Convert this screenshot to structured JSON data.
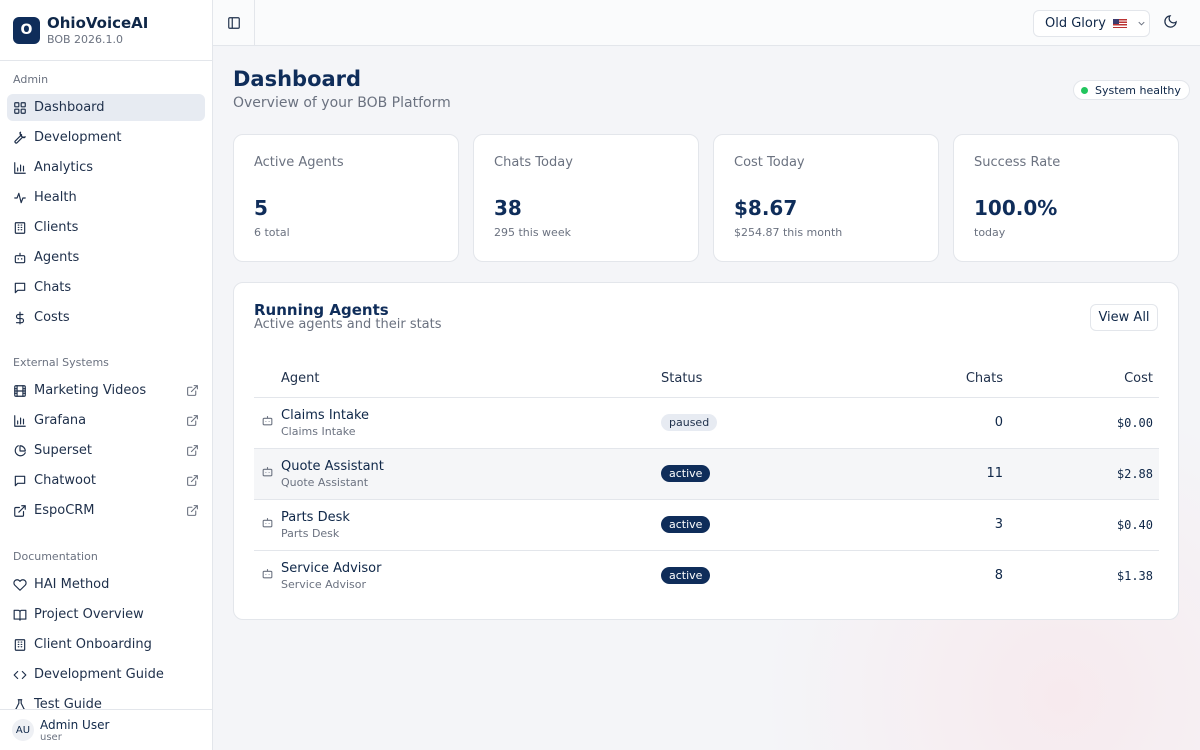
{
  "brand": {
    "logo": "O",
    "name": "OhioVoiceAI",
    "version": "BOB 2026.1.0"
  },
  "sidebar": {
    "sections": [
      {
        "label": "Admin",
        "items": [
          {
            "label": "Dashboard",
            "icon": "grid",
            "active": true
          },
          {
            "label": "Development",
            "icon": "wrench"
          },
          {
            "label": "Analytics",
            "icon": "bars"
          },
          {
            "label": "Health",
            "icon": "pulse"
          },
          {
            "label": "Clients",
            "icon": "building"
          },
          {
            "label": "Agents",
            "icon": "bot"
          },
          {
            "label": "Chats",
            "icon": "chat"
          },
          {
            "label": "Costs",
            "icon": "dollar"
          }
        ]
      },
      {
        "label": "External Systems",
        "items": [
          {
            "label": "Marketing Videos",
            "icon": "film",
            "external": true
          },
          {
            "label": "Grafana",
            "icon": "bars",
            "external": true
          },
          {
            "label": "Superset",
            "icon": "pie",
            "external": true
          },
          {
            "label": "Chatwoot",
            "icon": "chat",
            "external": true
          },
          {
            "label": "EspoCRM",
            "icon": "ext",
            "external": true
          }
        ]
      },
      {
        "label": "Documentation",
        "items": [
          {
            "label": "HAI Method",
            "icon": "heart"
          },
          {
            "label": "Project Overview",
            "icon": "book"
          },
          {
            "label": "Client Onboarding",
            "icon": "building"
          },
          {
            "label": "Development Guide",
            "icon": "code"
          },
          {
            "label": "Test Guide",
            "icon": "flask"
          }
        ]
      }
    ]
  },
  "user": {
    "initials": "AU",
    "name": "Admin User",
    "role": "user"
  },
  "topbar": {
    "theme": "Old Glory"
  },
  "page": {
    "title": "Dashboard",
    "subtitle": "Overview of your BOB Platform",
    "health": "System healthy"
  },
  "stats": [
    {
      "label": "Active Agents",
      "value": "5",
      "note": "6 total"
    },
    {
      "label": "Chats Today",
      "value": "38",
      "note": "295 this week"
    },
    {
      "label": "Cost Today",
      "value": "$8.67",
      "note": "$254.87 this month"
    },
    {
      "label": "Success Rate",
      "value": "100.0%",
      "note": "today"
    }
  ],
  "agents_panel": {
    "title": "Running Agents",
    "subtitle": "Active agents and their stats",
    "view_all": "View All",
    "columns": [
      "Agent",
      "Status",
      "Chats",
      "Cost"
    ],
    "rows": [
      {
        "name": "Claims Intake",
        "sub": "Claims Intake",
        "status": "paused",
        "chats": "0",
        "cost": "$0.00"
      },
      {
        "name": "Quote Assistant",
        "sub": "Quote Assistant",
        "status": "active",
        "chats": "11",
        "cost": "$2.88"
      },
      {
        "name": "Parts Desk",
        "sub": "Parts Desk",
        "status": "active",
        "chats": "3",
        "cost": "$0.40"
      },
      {
        "name": "Service Advisor",
        "sub": "Service Advisor",
        "status": "active",
        "chats": "8",
        "cost": "$1.38"
      }
    ]
  }
}
